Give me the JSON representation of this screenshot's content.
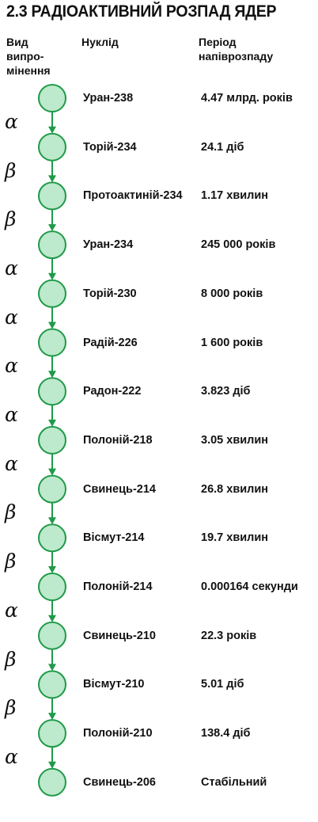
{
  "title": "2.3 РАДІОАКТИВНИЙ РОЗПАД ЯДЕР",
  "headers": {
    "radiation_lines": [
      "Вид",
      "випро-",
      "мінення"
    ],
    "nuclide": "Нуклід",
    "period_lines": [
      "Період",
      "напіврозпаду"
    ]
  },
  "colors": {
    "node_fill": "#bde9cc",
    "node_stroke": "#1f9a48",
    "arrow": "#1f9a48"
  },
  "chain": [
    {
      "nuclide": "Уран-238",
      "period": "4.47 млрд. років"
    },
    {
      "nuclide": "Торій-234",
      "period": "24.1 діб"
    },
    {
      "nuclide": "Протоактиній-234",
      "period": "1.17 хвилин"
    },
    {
      "nuclide": "Уран-234",
      "period": "245 000 років"
    },
    {
      "nuclide": "Торій-230",
      "period": "8 000 років"
    },
    {
      "nuclide": "Радій-226",
      "period": "1 600 років"
    },
    {
      "nuclide": "Радон-222",
      "period": "3.823 діб"
    },
    {
      "nuclide": "Полоній-218",
      "period": "3.05 хвилин"
    },
    {
      "nuclide": "Свинець-214",
      "period": "26.8 хвилин"
    },
    {
      "nuclide": "Вісмут-214",
      "period": "19.7 хвилин"
    },
    {
      "nuclide": "Полоній-214",
      "period": "0.000164 секунди"
    },
    {
      "nuclide": "Свинець-210",
      "period": "22.3 років"
    },
    {
      "nuclide": "Вісмут-210",
      "period": "5.01 діб"
    },
    {
      "nuclide": "Полоній-210",
      "period": "138.4 діб"
    },
    {
      "nuclide": "Свинець-206",
      "period": "Стабільний"
    }
  ],
  "decays": [
    "α",
    "β",
    "β",
    "α",
    "α",
    "α",
    "α",
    "α",
    "β",
    "β",
    "α",
    "β",
    "β",
    "α"
  ]
}
